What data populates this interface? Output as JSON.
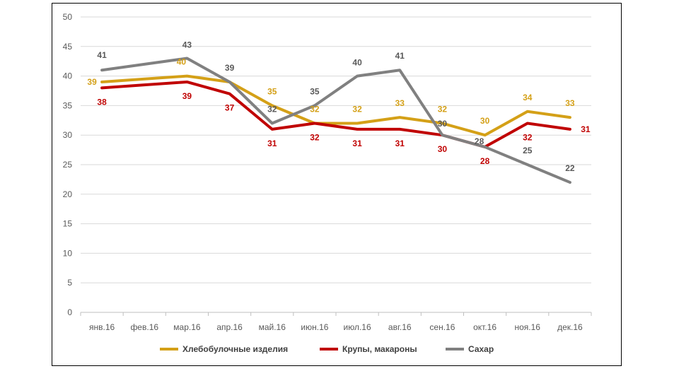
{
  "chart_data": {
    "type": "line",
    "title": "",
    "xlabel": "",
    "ylabel": "",
    "ylim": [
      0,
      50
    ],
    "yticks": [
      0,
      5,
      10,
      15,
      20,
      25,
      30,
      35,
      40,
      45,
      50
    ],
    "grid": true,
    "legend_position": "bottom",
    "categories": [
      "янв.16",
      "фев.16",
      "мар.16",
      "апр.16",
      "май.16",
      "июн.16",
      "июл.16",
      "авг.16",
      "сен.16",
      "окт.16",
      "ноя.16",
      "дек.16"
    ],
    "series": [
      {
        "name": "Хлебобулочные изделия",
        "color": "#D4A017",
        "values": [
          39,
          39.5,
          40,
          39,
          35,
          32,
          32,
          33,
          32,
          30,
          34,
          33
        ],
        "labels": [
          "39",
          "",
          "40",
          "",
          "35",
          "32",
          "32",
          "33",
          "32",
          "30",
          "34",
          "33"
        ]
      },
      {
        "name": "Крупы, макароны",
        "color": "#C00000",
        "values": [
          38,
          38.5,
          39,
          37,
          31,
          32,
          31,
          31,
          30,
          28,
          32,
          31
        ],
        "labels": [
          "38",
          "",
          "39",
          "37",
          "31",
          "32",
          "31",
          "31",
          "30",
          "28",
          "32",
          "31"
        ]
      },
      {
        "name": "Сахар",
        "color": "#808080",
        "values": [
          41,
          42,
          43,
          39,
          32,
          35,
          40,
          41,
          30,
          28,
          25,
          22
        ],
        "labels": [
          "41",
          "",
          "43",
          "39",
          "32",
          "35",
          "40",
          "41",
          "30",
          "28",
          "25",
          "22"
        ]
      }
    ]
  }
}
